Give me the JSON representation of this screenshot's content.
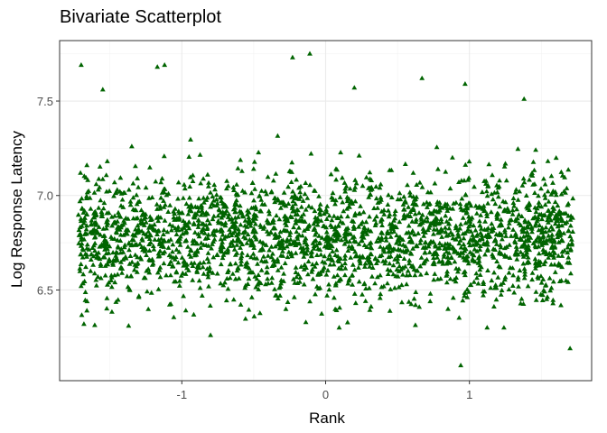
{
  "chart_data": {
    "type": "scatter",
    "title": "Bivariate Scatterplot",
    "xlabel": "Rank",
    "ylabel": "Log Response Latency",
    "xlim": [
      -1.85,
      1.85
    ],
    "ylim": [
      6.02,
      7.82
    ],
    "x_ticks": [
      -1,
      0,
      1
    ],
    "x_tick_labels": [
      "-1",
      "0",
      "1"
    ],
    "y_ticks": [
      6.5,
      7.0,
      7.5
    ],
    "y_tick_labels": [
      "6.5",
      "7.0",
      "7.5"
    ],
    "grid": true,
    "legend": "none",
    "marker": "triangle",
    "point_color": "#006400",
    "x_range": [
      -1.72,
      1.72
    ],
    "y_center": 6.78,
    "y_spread_sd": 0.16,
    "approx_point_count": 2500,
    "highlighted_points": [
      {
        "x": -1.7,
        "y": 7.69
      },
      {
        "x": -1.17,
        "y": 7.68
      },
      {
        "x": -1.12,
        "y": 7.69
      },
      {
        "x": -0.23,
        "y": 7.73
      },
      {
        "x": -0.11,
        "y": 7.75
      },
      {
        "x": 0.67,
        "y": 7.62
      },
      {
        "x": 0.97,
        "y": 7.59
      },
      {
        "x": -1.55,
        "y": 7.56
      },
      {
        "x": 0.2,
        "y": 7.57
      },
      {
        "x": 1.38,
        "y": 7.51
      },
      {
        "x": 0.94,
        "y": 6.1
      },
      {
        "x": 1.7,
        "y": 6.19
      },
      {
        "x": -0.8,
        "y": 6.26
      },
      {
        "x": -1.37,
        "y": 6.31
      },
      {
        "x": 1.24,
        "y": 6.3
      },
      {
        "x": -1.66,
        "y": 6.39
      }
    ]
  }
}
